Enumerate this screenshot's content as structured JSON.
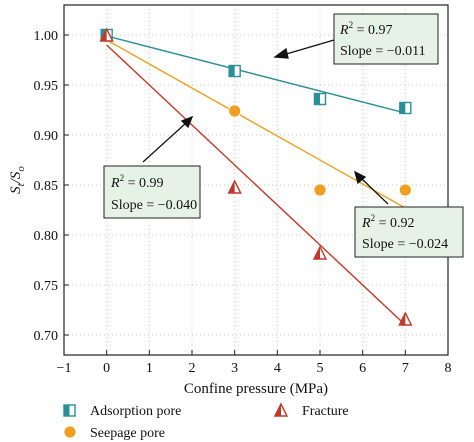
{
  "chart_data": {
    "type": "scatter",
    "xlabel": "Confine pressure (MPa)",
    "ylabel_main": "S",
    "ylabel_sub1": "t",
    "ylabel_sep": "/S",
    "ylabel_sub2": "o",
    "xlim": [
      -1,
      8
    ],
    "ylim": [
      0.68,
      1.03
    ],
    "xticks": [
      -1,
      0,
      1,
      2,
      3,
      4,
      5,
      6,
      7,
      8
    ],
    "xtick_labels": [
      "−1",
      "0",
      "1",
      "2",
      "3",
      "4",
      "5",
      "6",
      "7",
      "8"
    ],
    "yticks": [
      0.7,
      0.75,
      0.8,
      0.85,
      0.9,
      0.95,
      1.0
    ],
    "ytick_labels": [
      "0.70",
      "0.75",
      "0.80",
      "0.85",
      "0.90",
      "0.95",
      "1.00"
    ],
    "grid": "dotted",
    "series": [
      {
        "name": "Adsorption pore",
        "marker": "half-filled-square",
        "color": "#2a8f96",
        "x": [
          0,
          3,
          5,
          7
        ],
        "y": [
          1.0,
          0.964,
          0.936,
          0.927
        ],
        "fit": {
          "slope": -0.011,
          "intercept": 0.999,
          "r2": 0.97
        }
      },
      {
        "name": "Seepage pore",
        "marker": "circle",
        "color": "#f0a020",
        "x": [
          0,
          3,
          5,
          7
        ],
        "y": [
          1.0,
          0.924,
          0.845,
          0.845
        ],
        "fit": {
          "slope": -0.024,
          "intercept": 0.995,
          "r2": 0.92
        }
      },
      {
        "name": "Fracture",
        "marker": "half-filled-triangle",
        "color": "#c0392b",
        "x": [
          0,
          3,
          5,
          7
        ],
        "y": [
          1.0,
          0.848,
          0.782,
          0.716
        ],
        "fit": {
          "slope": -0.04,
          "intercept": 0.99,
          "r2": 0.99
        }
      }
    ],
    "annotations": [
      {
        "r2_label": "R",
        "r2_value": " = 0.97",
        "slope_text": "Slope = −0.011"
      },
      {
        "r2_label": "R",
        "r2_value": " = 0.99",
        "slope_text": "Slope = −0.040"
      },
      {
        "r2_label": "R",
        "r2_value": " = 0.92",
        "slope_text": "Slope = −0.024"
      }
    ],
    "annotation_box_color": "#e6f2e6",
    "legend": {
      "placement": "bottom",
      "items": [
        "Adsorption pore",
        "Fracture",
        "Seepage pore"
      ]
    }
  }
}
